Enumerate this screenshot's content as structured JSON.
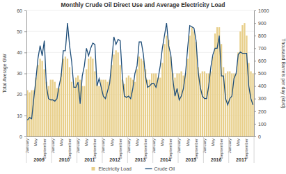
{
  "chart_data": {
    "type": "bar",
    "title": "Monthly Crude Oil Direct Use and Average Electricity Load",
    "y_label": "Total Average GW",
    "y2_label": "Thousand Barrels per day (kb/d)",
    "categories": [
      "January",
      null,
      null,
      null,
      "May",
      null,
      null,
      null,
      "September",
      null,
      null,
      null,
      "January",
      null,
      null,
      null,
      "May",
      null,
      null,
      null,
      "September",
      null,
      null,
      null,
      "January",
      null,
      null,
      null,
      "May",
      null,
      null,
      null,
      "September",
      null,
      null,
      null,
      "January",
      null,
      null,
      null,
      "May",
      null,
      null,
      null,
      "September",
      null,
      null,
      null,
      "January",
      null,
      null,
      null,
      "May",
      null,
      null,
      null,
      "September",
      null,
      null,
      null,
      "January",
      null,
      null,
      null,
      "May",
      null,
      null,
      null,
      "September",
      null,
      null,
      null,
      "January",
      null,
      null,
      null,
      "May",
      null,
      null,
      null,
      "September",
      null,
      null,
      null,
      "January",
      null,
      null,
      null,
      "May",
      null,
      null,
      null,
      "September",
      null,
      null,
      null,
      "January",
      null,
      null,
      null,
      "May",
      null,
      null,
      null,
      "September",
      null,
      null,
      null
    ],
    "year_labels": [
      2009,
      2010,
      2011,
      2012,
      2013,
      2014,
      2015,
      2016,
      2017
    ],
    "series": [
      {
        "name": "Electricity Load",
        "type": "bar",
        "color": "#e8cf8a",
        "values": [
          22,
          21,
          22,
          22,
          28,
          34,
          37,
          36,
          32,
          26,
          24,
          27,
          27,
          26,
          23,
          23,
          30,
          37,
          38,
          37,
          33,
          26,
          24,
          28,
          29,
          27,
          24,
          24,
          32,
          37,
          38,
          37,
          31,
          25,
          24,
          27,
          27,
          27,
          26,
          27,
          34,
          39,
          41,
          40,
          34,
          27,
          25,
          28,
          29,
          28,
          27,
          26,
          32,
          38,
          37,
          36,
          32,
          27,
          27,
          30,
          30,
          30,
          28,
          28,
          35,
          44,
          48,
          46,
          38,
          30,
          28,
          30,
          30,
          31,
          29,
          30,
          37,
          48,
          52,
          50,
          45,
          33,
          30,
          31,
          31,
          30,
          30,
          31,
          38,
          49,
          52,
          52,
          44,
          33,
          30,
          31,
          31,
          30,
          30,
          30,
          40,
          50,
          53,
          54,
          48,
          35,
          31,
          30
        ]
      },
      {
        "name": "Crude Oil",
        "type": "line",
        "axis": "y2",
        "color": "#1f4e79",
        "values": [
          130,
          150,
          140,
          300,
          450,
          620,
          720,
          640,
          760,
          400,
          300,
          290,
          290,
          280,
          300,
          400,
          480,
          680,
          680,
          900,
          720,
          590,
          390,
          390,
          430,
          260,
          480,
          560,
          700,
          640,
          700,
          740,
          730,
          400,
          460,
          390,
          320,
          300,
          360,
          420,
          600,
          790,
          730,
          770,
          760,
          480,
          320,
          310,
          320,
          300,
          380,
          500,
          560,
          750,
          750,
          650,
          480,
          390,
          400,
          420,
          420,
          390,
          460,
          560,
          700,
          800,
          900,
          720,
          650,
          450,
          320,
          380,
          290,
          320,
          380,
          500,
          700,
          880,
          870,
          860,
          760,
          510,
          390,
          320,
          300,
          300,
          400,
          550,
          650,
          700,
          700,
          800,
          480,
          480,
          300,
          250,
          300,
          320,
          460,
          500,
          650,
          670,
          660,
          660,
          660,
          400,
          300,
          250
        ]
      }
    ],
    "ylim": [
      0,
      60
    ],
    "yticks": [
      0,
      10,
      20,
      30,
      40,
      50,
      60
    ],
    "y2lim": [
      0,
      1000
    ],
    "y2ticks": [
      0,
      100,
      200,
      300,
      400,
      500,
      600,
      700,
      800,
      900,
      1000
    ],
    "grid": true,
    "legend": "bottom"
  }
}
